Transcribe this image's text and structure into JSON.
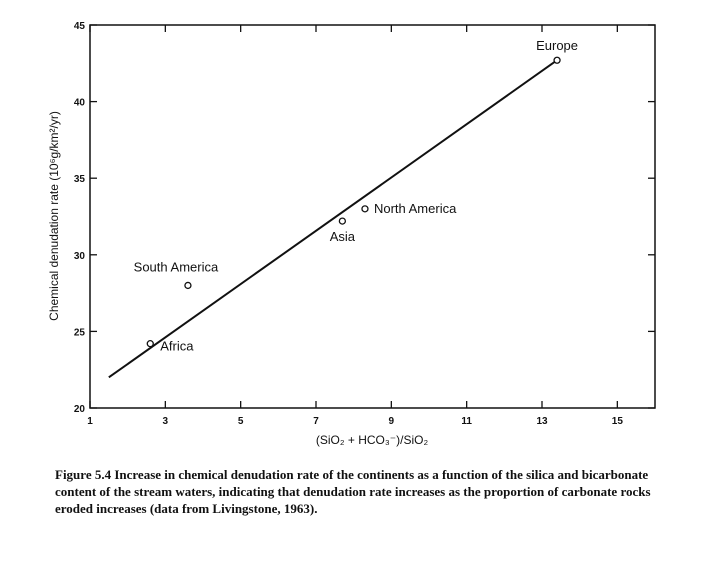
{
  "chart_data": {
    "type": "scatter",
    "title": "",
    "xlabel": "(SiO₂ + HCO₃⁻)/SiO₂",
    "ylabel": "Chemical denudation rate (10⁶g/km²/yr)",
    "xlim": [
      1,
      16
    ],
    "ylim": [
      20,
      45
    ],
    "xticks": [
      1,
      3,
      5,
      7,
      9,
      11,
      13,
      15
    ],
    "yticks": [
      20,
      25,
      30,
      35,
      40,
      45
    ],
    "grid": false,
    "points": [
      {
        "label": "Europe",
        "x": 13.4,
        "y": 42.7
      },
      {
        "label": "North America",
        "x": 8.3,
        "y": 33.0
      },
      {
        "label": "Asia",
        "x": 7.7,
        "y": 32.2
      },
      {
        "label": "South America",
        "x": 3.6,
        "y": 28.0
      },
      {
        "label": "Africa",
        "x": 2.6,
        "y": 24.2
      }
    ],
    "fit_line": {
      "x": [
        1.5,
        13.4
      ],
      "y": [
        22.0,
        42.7
      ]
    }
  },
  "caption": "Figure 5.4 Increase in chemical denudation rate of the continents as a function of the silica and bicarbonate content of the stream waters, indicating that denudation rate increases as the proportion of carbonate rocks eroded increases (data from Livingstone, 1963)."
}
